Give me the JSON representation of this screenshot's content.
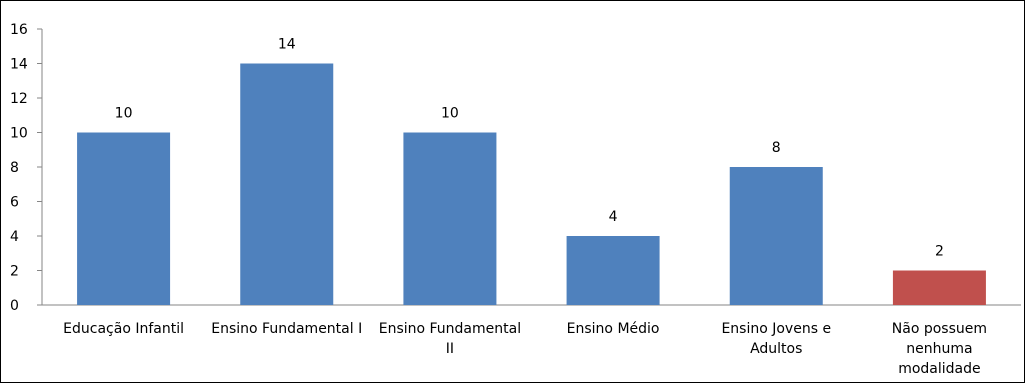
{
  "chart_data": {
    "type": "bar",
    "categories": [
      "Educação Infantil",
      "Ensino Fundamental I",
      "Ensino Fundamental II",
      "Ensino Médio",
      "Ensino Jovens e Adultos",
      "Não possuem nenhuma modalidade"
    ],
    "values": [
      10,
      14,
      10,
      4,
      8,
      2
    ],
    "data_labels": [
      "10",
      "14",
      "10",
      "4",
      "8",
      "2"
    ],
    "bar_colors": [
      "#4F81BD",
      "#4F81BD",
      "#4F81BD",
      "#4F81BD",
      "#4F81BD",
      "#C0504D"
    ],
    "title": "",
    "xlabel": "",
    "ylabel": "",
    "ylim": [
      0,
      16
    ],
    "yticks": [
      0,
      2,
      4,
      6,
      8,
      10,
      12,
      14,
      16
    ],
    "ytick_labels": [
      "0",
      "2",
      "4",
      "6",
      "8",
      "10",
      "12",
      "14",
      "16"
    ],
    "grid": false,
    "legend": "none"
  }
}
